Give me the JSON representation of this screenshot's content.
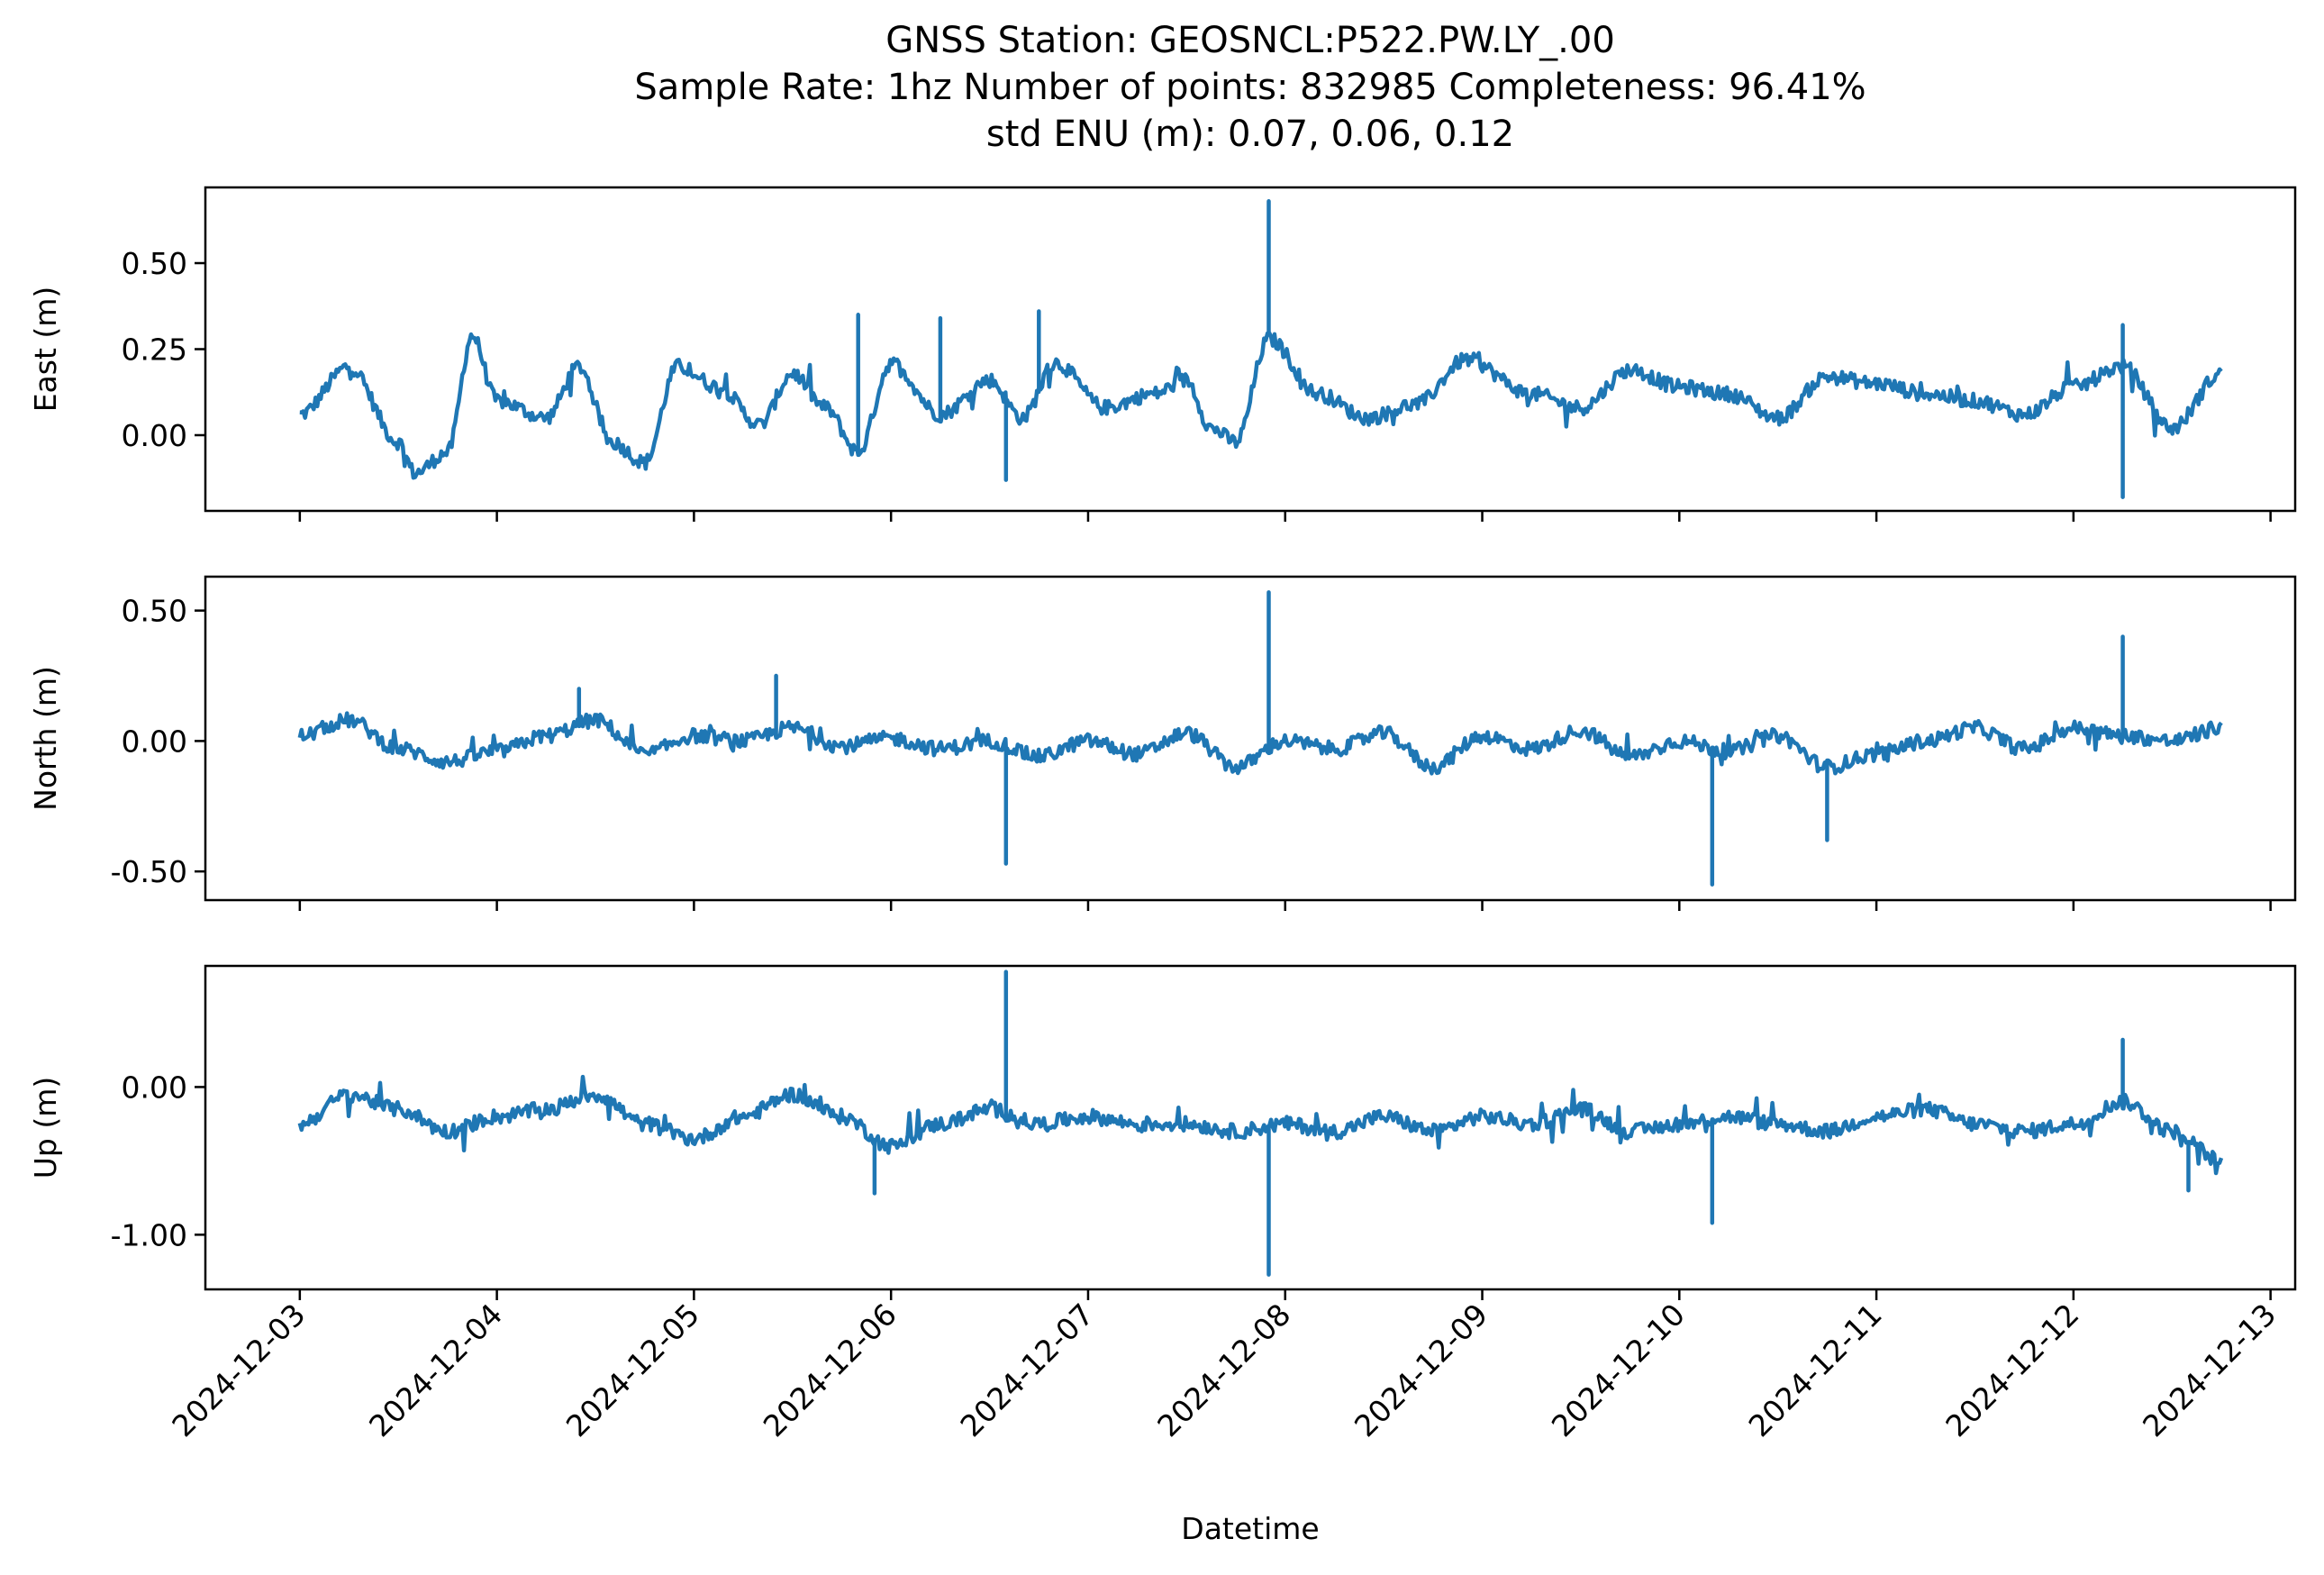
{
  "chart_data": {
    "type": "line",
    "title_lines": [
      "GNSS Station: GEOSNCL:P522.PW.LY_.00",
      "Sample Rate: 1hz   Number of points: 832985    Completeness:  96.41%",
      "std ENU (m):  0.07, 0.06, 0.12"
    ],
    "xlabel": "Datetime",
    "x_tick_labels": [
      "2024-12-03",
      "2024-12-04",
      "2024-12-05",
      "2024-12-06",
      "2024-12-07",
      "2024-12-08",
      "2024-12-09",
      "2024-12-10",
      "2024-12-11",
      "2024-12-12",
      "2024-12-13"
    ],
    "x_range": [
      "2024-12-02T12:30",
      "2024-12-13T03:00"
    ],
    "line_color": "#1f77b4",
    "panels": [
      {
        "name": "East",
        "ylabel": "East (m)",
        "ylim": [
          -0.22,
          0.72
        ],
        "yticks": [
          0.0,
          0.25,
          0.5
        ],
        "ytick_labels": [
          "0.00",
          "0.25",
          "0.50"
        ],
        "x": [
          "2024-12-03T00:00",
          "2024-12-03T06:00",
          "2024-12-03T12:00",
          "2024-12-03T14:00",
          "2024-12-03T18:00",
          "2024-12-03T21:00",
          "2024-12-04T00:00",
          "2024-12-04T06:00",
          "2024-12-04T10:00",
          "2024-12-04T14:00",
          "2024-12-04T18:00",
          "2024-12-04T22:00",
          "2024-12-05T03:00",
          "2024-12-05T08:00",
          "2024-12-05T12:00",
          "2024-12-05T16:00",
          "2024-12-05T20:00",
          "2024-12-06T00:00",
          "2024-12-06T06:00",
          "2024-12-06T12:00",
          "2024-12-06T16:00",
          "2024-12-06T20:00",
          "2024-12-07T02:00",
          "2024-12-07T08:00",
          "2024-12-07T12:00",
          "2024-12-07T15:00",
          "2024-12-07T18:00",
          "2024-12-07T22:00",
          "2024-12-08T04:00",
          "2024-12-08T10:00",
          "2024-12-08T16:00",
          "2024-12-08T22:00",
          "2024-12-09T06:00",
          "2024-12-09T12:00",
          "2024-12-09T18:00",
          "2024-12-10T00:00",
          "2024-12-10T06:00",
          "2024-12-10T12:00",
          "2024-12-10T18:00",
          "2024-12-11T00:00",
          "2024-12-11T06:00",
          "2024-12-11T12:00",
          "2024-12-11T18:00",
          "2024-12-12T00:00",
          "2024-12-12T06:00",
          "2024-12-12T12:00",
          "2024-12-12T18:00"
        ],
        "values": [
          0.06,
          0.2,
          -0.02,
          -0.11,
          -0.05,
          0.29,
          0.1,
          0.05,
          0.2,
          -0.02,
          -0.08,
          0.2,
          0.14,
          0.03,
          0.18,
          0.08,
          -0.05,
          0.21,
          0.06,
          0.16,
          0.05,
          0.21,
          0.08,
          0.12,
          0.16,
          0.02,
          -0.02,
          0.28,
          0.12,
          0.05,
          0.09,
          0.22,
          0.12,
          0.08,
          0.19,
          0.14,
          0.12,
          0.05,
          0.17,
          0.15,
          0.12,
          0.1,
          0.06,
          0.14,
          0.2,
          0.02,
          0.18
        ],
        "spikes": [
          {
            "x": "2024-12-07T22:00",
            "value": 0.68
          },
          {
            "x": "2024-12-06T06:00",
            "value": 0.34
          },
          {
            "x": "2024-12-05T20:00",
            "value": 0.35
          },
          {
            "x": "2024-12-06T18:00",
            "value": 0.36
          },
          {
            "x": "2024-12-12T06:00",
            "value": 0.32
          },
          {
            "x": "2024-12-12T06:00",
            "value": -0.18
          },
          {
            "x": "2024-12-06T14:00",
            "value": -0.13
          }
        ]
      },
      {
        "name": "North",
        "ylabel": "North (m)",
        "ylim": [
          -0.61,
          0.63
        ],
        "yticks": [
          -0.5,
          0.0,
          0.5
        ],
        "ytick_labels": [
          "-0.50",
          "0.00",
          "0.50"
        ],
        "x": [
          "2024-12-03T00:00",
          "2024-12-03T06:00",
          "2024-12-03T12:00",
          "2024-12-03T18:00",
          "2024-12-04T00:00",
          "2024-12-04T06:00",
          "2024-12-04T12:00",
          "2024-12-04T18:00",
          "2024-12-05T00:00",
          "2024-12-05T06:00",
          "2024-12-05T12:00",
          "2024-12-05T18:00",
          "2024-12-06T00:00",
          "2024-12-06T06:00",
          "2024-12-06T12:00",
          "2024-12-06T18:00",
          "2024-12-07T00:00",
          "2024-12-07T06:00",
          "2024-12-07T12:00",
          "2024-12-07T18:00",
          "2024-12-08T00:00",
          "2024-12-08T06:00",
          "2024-12-08T12:00",
          "2024-12-08T18:00",
          "2024-12-09T00:00",
          "2024-12-09T06:00",
          "2024-12-09T12:00",
          "2024-12-09T18:00",
          "2024-12-10T00:00",
          "2024-12-10T06:00",
          "2024-12-10T12:00",
          "2024-12-10T18:00",
          "2024-12-11T00:00",
          "2024-12-11T06:00",
          "2024-12-11T12:00",
          "2024-12-11T18:00",
          "2024-12-12T00:00",
          "2024-12-12T06:00",
          "2024-12-12T12:00",
          "2024-12-12T18:00"
        ],
        "values": [
          0.02,
          0.08,
          -0.03,
          -0.08,
          -0.04,
          0.02,
          0.08,
          -0.05,
          0.02,
          0.0,
          0.05,
          -0.02,
          0.01,
          -0.03,
          0.0,
          -0.06,
          0.0,
          -0.05,
          0.03,
          -0.1,
          0.0,
          -0.03,
          0.03,
          -0.1,
          0.02,
          -0.03,
          0.04,
          -0.06,
          0.0,
          -0.04,
          0.02,
          -0.1,
          -0.05,
          0.0,
          0.05,
          -0.03,
          0.05,
          0.02,
          0.0,
          0.05
        ],
        "spikes": [
          {
            "x": "2024-12-07T22:00",
            "value": 0.57
          },
          {
            "x": "2024-12-12T06:00",
            "value": 0.4
          },
          {
            "x": "2024-12-06T14:00",
            "value": -0.47
          },
          {
            "x": "2024-12-10T04:00",
            "value": -0.55
          },
          {
            "x": "2024-12-05T10:00",
            "value": 0.25
          },
          {
            "x": "2024-12-04T10:00",
            "value": 0.2
          },
          {
            "x": "2024-12-10T18:00",
            "value": -0.38
          }
        ]
      },
      {
        "name": "Up",
        "ylabel": "Up (m)",
        "ylim": [
          -1.37,
          0.82
        ],
        "yticks": [
          -1.0,
          0.0
        ],
        "ytick_labels": [
          "-1.00",
          "0.00"
        ],
        "x": [
          "2024-12-03T00:00",
          "2024-12-03T06:00",
          "2024-12-03T12:00",
          "2024-12-03T18:00",
          "2024-12-04T00:00",
          "2024-12-04T06:00",
          "2024-12-04T12:00",
          "2024-12-04T18:00",
          "2024-12-05T00:00",
          "2024-12-05T06:00",
          "2024-12-05T12:00",
          "2024-12-05T18:00",
          "2024-12-06T00:00",
          "2024-12-06T06:00",
          "2024-12-06T12:00",
          "2024-12-06T18:00",
          "2024-12-07T00:00",
          "2024-12-07T06:00",
          "2024-12-07T12:00",
          "2024-12-07T18:00",
          "2024-12-08T00:00",
          "2024-12-08T06:00",
          "2024-12-08T12:00",
          "2024-12-08T18:00",
          "2024-12-09T00:00",
          "2024-12-09T06:00",
          "2024-12-09T12:00",
          "2024-12-09T18:00",
          "2024-12-10T00:00",
          "2024-12-10T06:00",
          "2024-12-10T12:00",
          "2024-12-10T18:00",
          "2024-12-11T00:00",
          "2024-12-11T06:00",
          "2024-12-11T12:00",
          "2024-12-11T18:00",
          "2024-12-12T00:00",
          "2024-12-12T06:00",
          "2024-12-12T12:00",
          "2024-12-12T18:00"
        ],
        "values": [
          -0.25,
          -0.05,
          -0.15,
          -0.3,
          -0.2,
          -0.15,
          -0.05,
          -0.25,
          -0.35,
          -0.2,
          -0.05,
          -0.2,
          -0.4,
          -0.25,
          -0.15,
          -0.25,
          -0.2,
          -0.25,
          -0.25,
          -0.3,
          -0.25,
          -0.3,
          -0.2,
          -0.3,
          -0.2,
          -0.25,
          -0.15,
          -0.3,
          -0.25,
          -0.2,
          -0.25,
          -0.3,
          -0.2,
          -0.15,
          -0.25,
          -0.3,
          -0.25,
          -0.1,
          -0.3,
          -0.5
        ],
        "spikes": [
          {
            "x": "2024-12-06T14:00",
            "value": 0.78
          },
          {
            "x": "2024-12-07T22:00",
            "value": -1.27
          },
          {
            "x": "2024-12-10T04:00",
            "value": -0.92
          },
          {
            "x": "2024-12-12T06:00",
            "value": 0.32
          },
          {
            "x": "2024-12-05T22:00",
            "value": -0.72
          },
          {
            "x": "2024-12-12T14:00",
            "value": -0.7
          }
        ]
      }
    ]
  }
}
